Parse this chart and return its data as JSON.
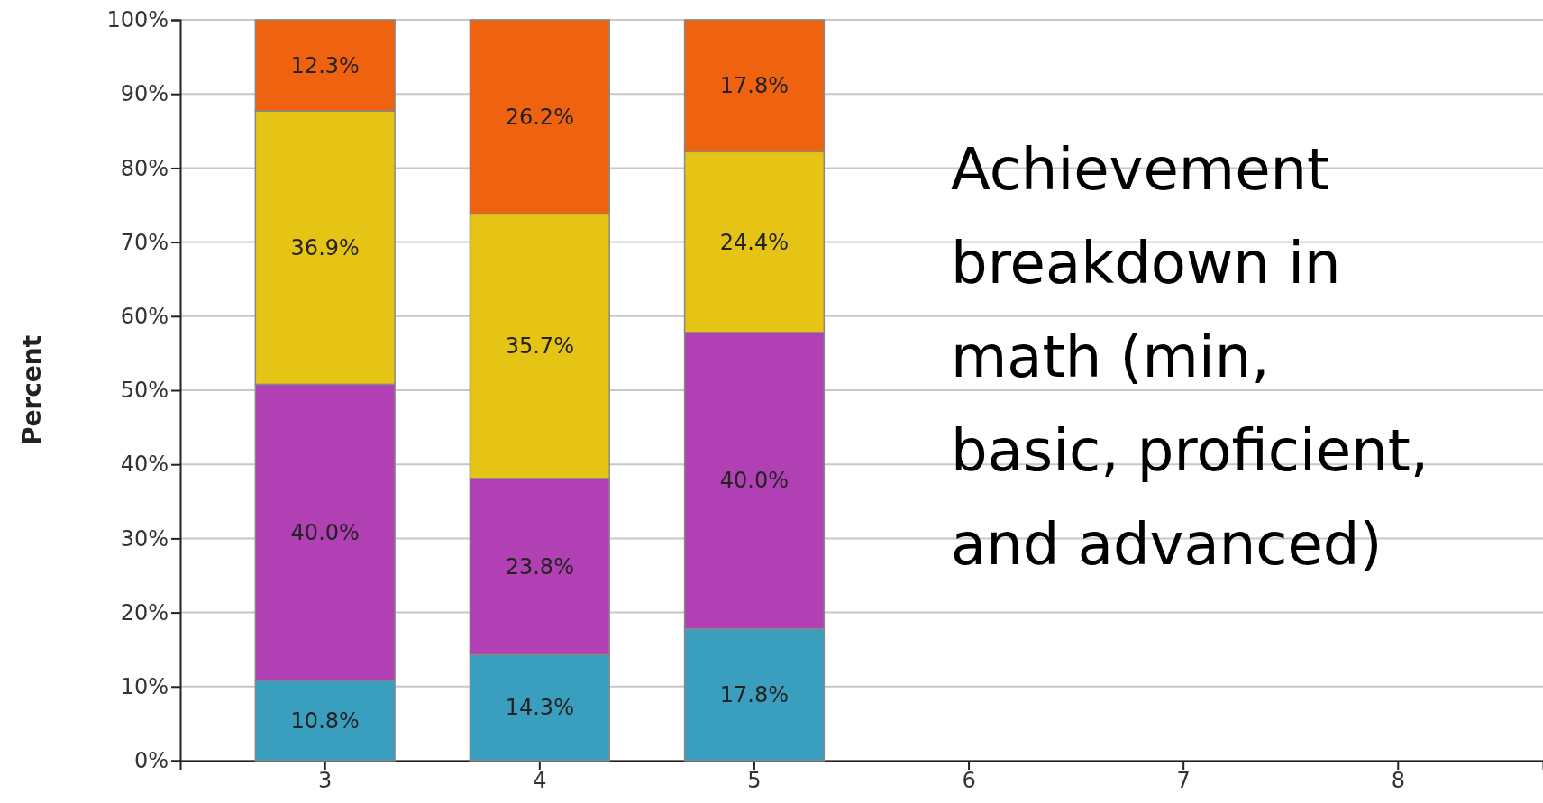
{
  "chart_data": {
    "type": "bar",
    "stacked": true,
    "ylabel": "Percent",
    "categories": [
      "3",
      "4",
      "5",
      "6",
      "7",
      "8"
    ],
    "series": [
      {
        "color": "#3a9fbf",
        "values": [
          10.8,
          14.3,
          17.8,
          null,
          null,
          null
        ],
        "value_labels": [
          "10.8%",
          "14.3%",
          "17.8%",
          null,
          null,
          null
        ]
      },
      {
        "color": "#b040b4",
        "values": [
          40.0,
          23.8,
          40.0,
          null,
          null,
          null
        ],
        "value_labels": [
          "40.0%",
          "23.8%",
          "40.0%",
          null,
          null,
          null
        ]
      },
      {
        "color": "#e6c416",
        "values": [
          36.9,
          35.7,
          24.4,
          null,
          null,
          null
        ],
        "value_labels": [
          "36.9%",
          "35.7%",
          "24.4%",
          null,
          null,
          null
        ]
      },
      {
        "color": "#ef6210",
        "values": [
          12.3,
          26.2,
          17.8,
          null,
          null,
          null
        ],
        "value_labels": [
          "12.3%",
          "26.2%",
          "17.8%",
          null,
          null,
          null
        ]
      }
    ],
    "ylim": [
      0,
      100
    ],
    "yticks": [
      {
        "value": 0,
        "label": "0%"
      },
      {
        "value": 10,
        "label": "10%"
      },
      {
        "value": 20,
        "label": "20%"
      },
      {
        "value": 30,
        "label": "30%"
      },
      {
        "value": 40,
        "label": "40%"
      },
      {
        "value": 50,
        "label": "50%"
      },
      {
        "value": 60,
        "label": "60%"
      },
      {
        "value": 70,
        "label": "70%"
      },
      {
        "value": 80,
        "label": "80%"
      },
      {
        "value": 90,
        "label": "90%"
      },
      {
        "value": 100,
        "label": "100%"
      }
    ],
    "grid": "y",
    "annotations": [
      "Achievement breakdown in math (min, basic, proficient, and advanced)"
    ]
  }
}
